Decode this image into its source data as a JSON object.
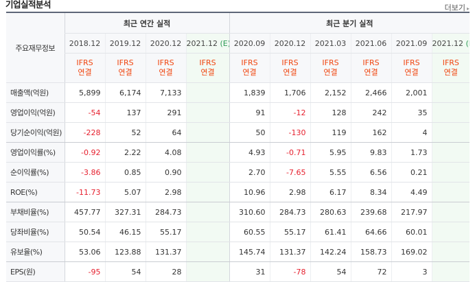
{
  "section_title": "기업실적분석",
  "more_label": "더보기",
  "more_arrow": "▸",
  "header": {
    "row_label": "주요재무정보",
    "annual_title": "최근 연간 실적",
    "quarter_title": "최근 분기 실적",
    "annual_periods": [
      "2018.12",
      "2019.12",
      "2020.12",
      "2021.12"
    ],
    "quarter_periods": [
      "2020.09",
      "2020.12",
      "2021.03",
      "2021.06",
      "2021.09",
      "2021.12"
    ],
    "estimate_mark": "(E)",
    "ifrs_line1": "IFRS",
    "ifrs_line2": "연결"
  },
  "rows": [
    {
      "label": "매출액(억원)",
      "annual": [
        "5,899",
        "6,174",
        "7,133",
        ""
      ],
      "quarter": [
        "1,839",
        "1,706",
        "2,152",
        "2,466",
        "2,001",
        ""
      ]
    },
    {
      "label": "영업이익(억원)",
      "annual": [
        "-54",
        "137",
        "291",
        ""
      ],
      "quarter": [
        "91",
        "-12",
        "128",
        "242",
        "35",
        ""
      ]
    },
    {
      "label": "당기순이익(억원)",
      "annual": [
        "-228",
        "52",
        "64",
        ""
      ],
      "quarter": [
        "50",
        "-130",
        "119",
        "162",
        "4",
        ""
      ]
    },
    {
      "label": "영업이익률(%)",
      "annual": [
        "-0.92",
        "2.22",
        "4.08",
        ""
      ],
      "quarter": [
        "4.93",
        "-0.71",
        "5.95",
        "9.83",
        "1.73",
        ""
      ]
    },
    {
      "label": "순이익률(%)",
      "annual": [
        "-3.86",
        "0.85",
        "0.90",
        ""
      ],
      "quarter": [
        "2.70",
        "-7.65",
        "5.55",
        "6.56",
        "0.21",
        ""
      ]
    },
    {
      "label": "ROE(%)",
      "annual": [
        "-11.73",
        "5.07",
        "2.98",
        ""
      ],
      "quarter": [
        "10.96",
        "2.98",
        "6.17",
        "8.34",
        "4.49",
        ""
      ]
    },
    {
      "label": "부채비율(%)",
      "annual": [
        "457.77",
        "327.31",
        "284.73",
        ""
      ],
      "quarter": [
        "310.60",
        "284.73",
        "280.63",
        "239.68",
        "217.97",
        ""
      ]
    },
    {
      "label": "당좌비율(%)",
      "annual": [
        "50.54",
        "46.15",
        "55.17",
        ""
      ],
      "quarter": [
        "60.55",
        "55.17",
        "61.41",
        "64.66",
        "60.01",
        ""
      ]
    },
    {
      "label": "유보율(%)",
      "annual": [
        "53.06",
        "123.88",
        "131.37",
        ""
      ],
      "quarter": [
        "145.74",
        "131.37",
        "142.24",
        "158.73",
        "169.02",
        ""
      ]
    },
    {
      "label": "EPS(원)",
      "annual": [
        "-95",
        "54",
        "28",
        ""
      ],
      "quarter": [
        "31",
        "-78",
        "54",
        "72",
        "3",
        ""
      ]
    }
  ]
}
